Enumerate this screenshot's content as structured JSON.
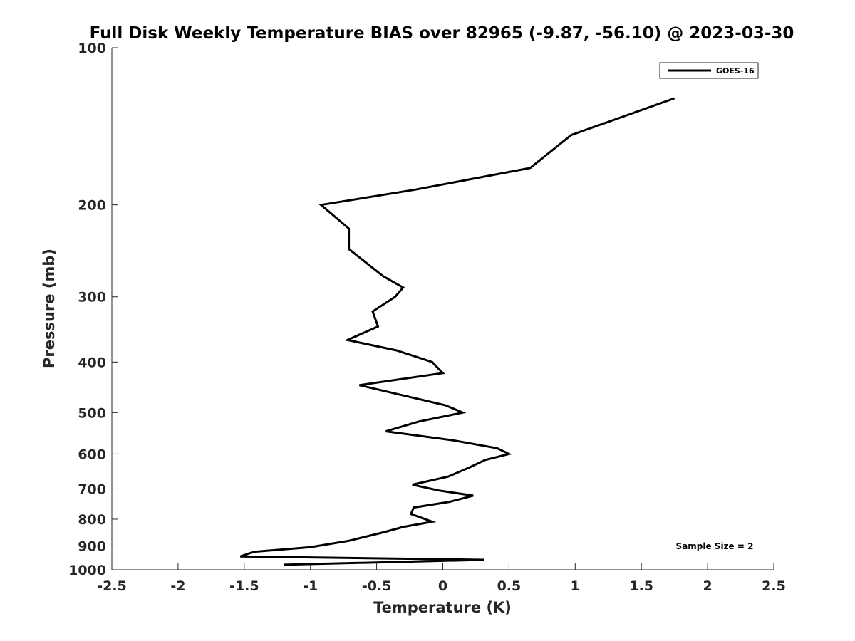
{
  "chart_data": {
    "type": "line",
    "title": "Full Disk Weekly Temperature BIAS over 82965 (-9.87, -56.10) @ 2023-03-30",
    "xlabel": "Temperature (K)",
    "ylabel": "Pressure (mb)",
    "xlim": [
      -2.5,
      2.5
    ],
    "ylim": [
      100,
      1000
    ],
    "y_scale": "log",
    "y_reversed": true,
    "x_ticks": [
      "-2.5",
      "-2",
      "-1.5",
      "-1",
      "-0.5",
      "0",
      "0.5",
      "1",
      "1.5",
      "2",
      "2.5"
    ],
    "y_ticks": [
      "100",
      "200",
      "300",
      "400",
      "500",
      "600",
      "700",
      "800",
      "900",
      "1000"
    ],
    "grid": false,
    "legend_position": "top-right",
    "annotation": "Sample Size = 2",
    "series": [
      {
        "name": "GOES-16",
        "color": "#000000",
        "points": [
          {
            "x": 1.75,
            "y": 125
          },
          {
            "x": 0.97,
            "y": 147
          },
          {
            "x": 0.66,
            "y": 170
          },
          {
            "x": -0.21,
            "y": 187
          },
          {
            "x": -0.92,
            "y": 200
          },
          {
            "x": -0.71,
            "y": 222
          },
          {
            "x": -0.71,
            "y": 243
          },
          {
            "x": -0.45,
            "y": 274
          },
          {
            "x": -0.3,
            "y": 288
          },
          {
            "x": -0.36,
            "y": 300
          },
          {
            "x": -0.53,
            "y": 320
          },
          {
            "x": -0.49,
            "y": 342
          },
          {
            "x": -0.72,
            "y": 363
          },
          {
            "x": -0.35,
            "y": 380
          },
          {
            "x": -0.08,
            "y": 400
          },
          {
            "x": 0.0,
            "y": 420
          },
          {
            "x": -0.63,
            "y": 443
          },
          {
            "x": 0.02,
            "y": 484
          },
          {
            "x": 0.15,
            "y": 500
          },
          {
            "x": -0.18,
            "y": 520
          },
          {
            "x": -0.43,
            "y": 543
          },
          {
            "x": 0.08,
            "y": 565
          },
          {
            "x": 0.41,
            "y": 585
          },
          {
            "x": 0.5,
            "y": 600
          },
          {
            "x": 0.32,
            "y": 616
          },
          {
            "x": 0.2,
            "y": 637
          },
          {
            "x": 0.04,
            "y": 663
          },
          {
            "x": -0.23,
            "y": 687
          },
          {
            "x": -0.03,
            "y": 705
          },
          {
            "x": 0.23,
            "y": 721
          },
          {
            "x": 0.05,
            "y": 741
          },
          {
            "x": -0.22,
            "y": 760
          },
          {
            "x": -0.24,
            "y": 782
          },
          {
            "x": -0.08,
            "y": 809
          },
          {
            "x": -0.3,
            "y": 828
          },
          {
            "x": -0.45,
            "y": 848
          },
          {
            "x": -0.71,
            "y": 880
          },
          {
            "x": -1.0,
            "y": 905
          },
          {
            "x": -1.43,
            "y": 924
          },
          {
            "x": -1.53,
            "y": 943
          },
          {
            "x": 0.31,
            "y": 957
          },
          {
            "x": -1.2,
            "y": 978
          }
        ]
      }
    ]
  }
}
